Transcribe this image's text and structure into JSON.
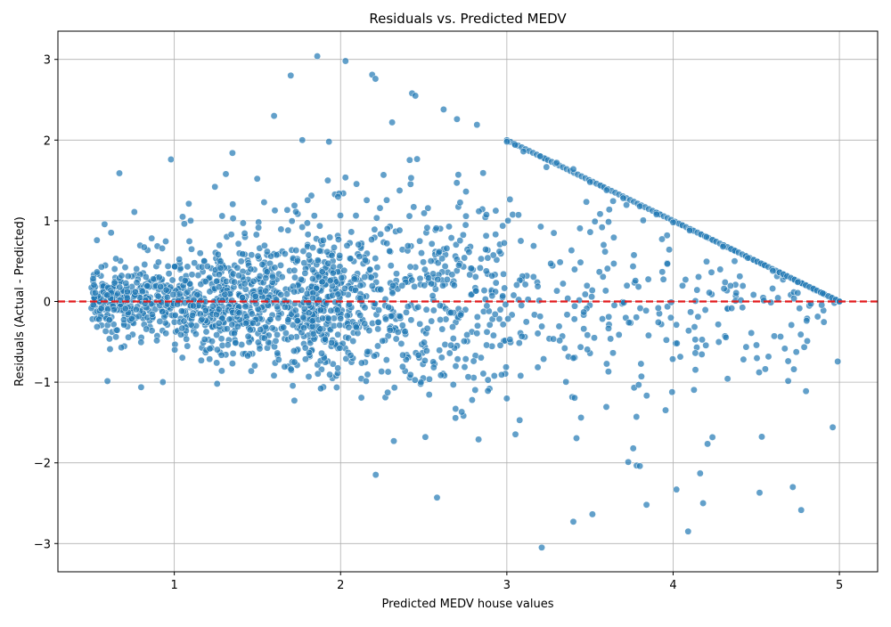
{
  "chart_data": {
    "type": "scatter",
    "title": "Residuals vs. Predicted MEDV",
    "xlabel": "Predicted MEDV house values",
    "ylabel": "Residuals (Actual - Predicted)",
    "xlim": [
      0.3,
      5.23
    ],
    "ylim": [
      -3.35,
      3.35
    ],
    "x_ticks": [
      1,
      2,
      3,
      4,
      5
    ],
    "y_ticks": [
      -3,
      -2,
      -1,
      0,
      1,
      2,
      3
    ],
    "x_tick_labels": [
      "1",
      "2",
      "3",
      "4",
      "5"
    ],
    "y_tick_labels": [
      "−3",
      "−2",
      "−1",
      "0",
      "1",
      "2",
      "3"
    ],
    "grid": true,
    "reference_line": {
      "y": 0,
      "style": "dashed",
      "color": "#e31a1c"
    },
    "point_color": "#1f77b4",
    "point_opacity": 0.7,
    "point_count_generated": 1900,
    "sample_points": {
      "x": [
        1.86,
        2.03,
        2.19,
        2.21,
        2.43,
        2.45,
        1.7,
        1.6,
        1.35,
        0.98,
        1.77,
        1.93,
        2.31,
        2.62,
        2.7,
        2.82,
        3.0,
        3.05,
        3.1,
        3.2,
        3.3,
        3.4,
        3.5,
        3.6,
        3.7,
        3.8,
        3.9,
        4.0,
        4.1,
        4.2,
        4.3,
        4.45,
        4.6,
        4.75,
        4.9,
        5.0,
        0.67,
        1.31,
        1.05,
        2.58,
        3.4,
        3.21,
        4.09,
        3.84,
        4.02,
        4.18,
        4.72,
        4.52,
        3.73,
        2.32,
        2.51,
        2.83,
        3.76
      ],
      "y": [
        3.04,
        2.98,
        2.81,
        2.76,
        2.58,
        2.55,
        2.8,
        2.3,
        1.84,
        1.76,
        2.0,
        1.98,
        2.22,
        2.38,
        2.26,
        2.19,
        1.98,
        1.94,
        1.86,
        1.8,
        1.72,
        1.64,
        1.48,
        1.38,
        1.28,
        1.18,
        1.08,
        0.98,
        0.88,
        0.8,
        0.68,
        0.54,
        0.38,
        0.24,
        0.1,
        0.0,
        1.59,
        1.58,
        1.05,
        -2.43,
        -2.73,
        -3.05,
        -2.85,
        -2.52,
        -2.33,
        -2.5,
        -2.3,
        -2.37,
        -1.99,
        -1.73,
        -1.68,
        -1.71,
        -1.82
      ]
    }
  }
}
